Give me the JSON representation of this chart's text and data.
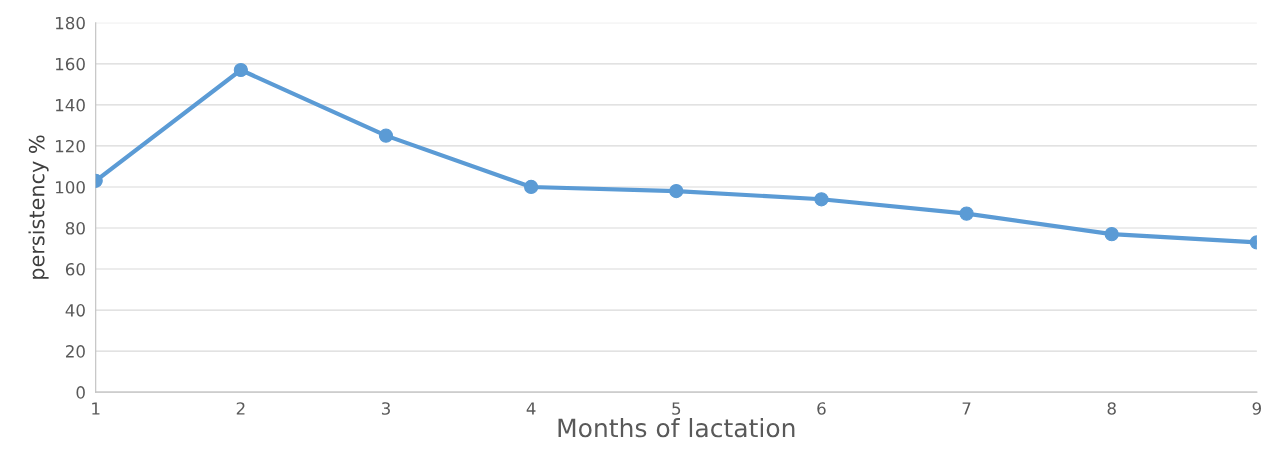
{
  "chart_data": {
    "type": "line",
    "xlabel": "Months of lactation",
    "ylabel": "persistency %",
    "x": [
      1,
      2,
      3,
      4,
      5,
      6,
      7,
      8,
      9
    ],
    "series": [
      {
        "color": "#5b9bd5",
        "values": [
          103,
          157,
          125,
          100,
          98,
          94,
          87,
          77,
          73
        ]
      }
    ],
    "xlim": [
      1,
      9
    ],
    "xticks": [
      1,
      2,
      3,
      4,
      5,
      6,
      7,
      8,
      9
    ],
    "ylim": [
      0,
      180
    ],
    "yticks": [
      0,
      20,
      40,
      60,
      80,
      100,
      120,
      140,
      160,
      180
    ],
    "grid": "y",
    "marker": "circle",
    "line_style": "solid"
  }
}
